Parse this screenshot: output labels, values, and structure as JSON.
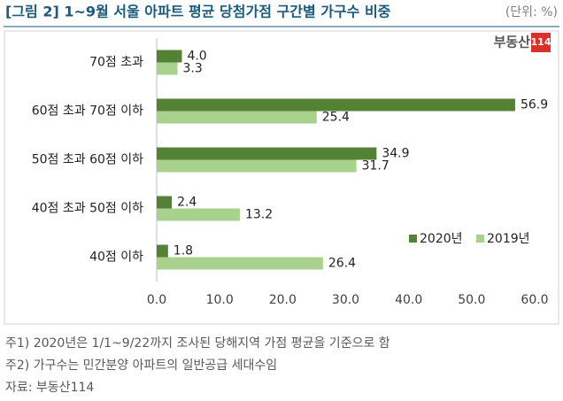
{
  "chart_data": {
    "type": "hbar",
    "title": "[그림 2] 1~9월 서울 아파트 평균 당첨가점 구간별 가구수 비중",
    "unit_note": "(단위: %)",
    "logo": [
      "부동산",
      "114"
    ],
    "categories": [
      "70점 초과",
      "60점 초과 70점 이하",
      "50점 초과 60점 이하",
      "40점 초과 50점 이하",
      "40점 이하"
    ],
    "series": [
      {
        "name": "2020년",
        "color": "#548235",
        "values": [
          4.0,
          56.9,
          34.9,
          2.4,
          1.8
        ],
        "value_labels": [
          "4.0",
          "56.9",
          "34.9",
          "2.4",
          "1.8"
        ]
      },
      {
        "name": "2019년",
        "color": "#a9d18e",
        "values": [
          3.3,
          25.4,
          31.7,
          13.2,
          26.4
        ]
      }
    ],
    "xlim": [
      0,
      60
    ],
    "xticks": [
      {
        "value": 0,
        "label": "0.0"
      },
      {
        "value": 10,
        "label": "10.0"
      },
      {
        "value": 20,
        "label": "20.0"
      },
      {
        "value": 30,
        "label": "30.0"
      },
      {
        "value": 40,
        "label": "40.0"
      },
      {
        "value": 50,
        "label": "50.0"
      },
      {
        "value": 60,
        "label": "60.0"
      }
    ],
    "grid": false,
    "notes": [
      "주1) 2020년은 1/1~9/22까지 조사된 당해지역 가점 평균을 기준으로 함",
      "주2) 가구수는 민간분양 아파트의 일반공급 세대수임",
      "자료: 부동산114"
    ]
  }
}
